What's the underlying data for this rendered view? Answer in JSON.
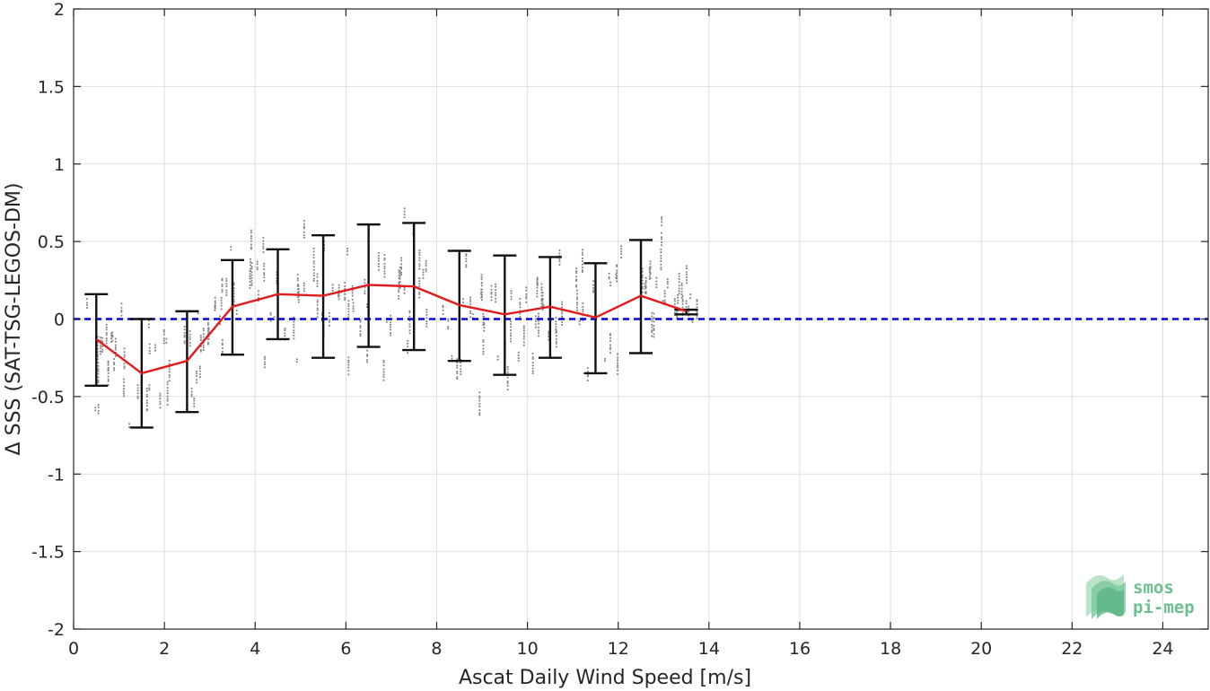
{
  "chart_data": {
    "type": "scatter",
    "xlabel": "Ascat Daily Wind Speed [m/s]",
    "ylabel": "Δ SSS (SAT-TSG-LEGOS-DM)",
    "xlim": [
      0,
      25
    ],
    "ylim": [
      -2,
      2
    ],
    "x_ticks": [
      0,
      2,
      4,
      6,
      8,
      10,
      12,
      14,
      16,
      18,
      20,
      22,
      24
    ],
    "x_tick_labels": [
      "0",
      "2",
      "4",
      "6",
      "8",
      "10",
      "12",
      "14",
      "16",
      "18",
      "20",
      "22",
      "24"
    ],
    "y_ticks": [
      2,
      1.5,
      1,
      0.5,
      0,
      -0.5,
      -1,
      -1.5,
      -2
    ],
    "y_tick_labels": [
      "2",
      "1.5",
      "1",
      "0.5",
      "0",
      "-0.5",
      "-1",
      "-1.5",
      "-2"
    ],
    "grid": true,
    "zero_line": {
      "y": 0,
      "style": "dashed",
      "color": "#0000dd"
    },
    "series": [
      {
        "kind": "binned-mean",
        "color": "#e31a1c",
        "x": [
          0.5,
          1.5,
          2.5,
          3.5,
          4.5,
          5.5,
          6.5,
          7.5,
          8.5,
          9.5,
          10.5,
          11.5,
          12.5,
          13.5
        ],
        "mean": [
          -0.13,
          -0.35,
          -0.27,
          0.08,
          0.16,
          0.15,
          0.22,
          0.21,
          0.09,
          0.03,
          0.08,
          0.01,
          0.15,
          0.05
        ],
        "lower": [
          -0.43,
          -0.7,
          -0.6,
          -0.23,
          -0.13,
          -0.25,
          -0.18,
          -0.2,
          -0.27,
          -0.36,
          -0.25,
          -0.35,
          -0.22,
          0.03
        ],
        "upper": [
          0.16,
          0.0,
          0.05,
          0.38,
          0.45,
          0.54,
          0.61,
          0.62,
          0.44,
          0.41,
          0.4,
          0.36,
          0.51,
          0.06
        ]
      },
      {
        "kind": "raw-points",
        "color": "#7f7f7f",
        "note_count_approx": 1500,
        "clusters": [
          {
            "x": [
              0.2,
              1.0
            ],
            "y_mean": -0.2,
            "y_spread": 0.25
          },
          {
            "x": [
              1.0,
              2.0
            ],
            "y_mean": -0.35,
            "y_spread": 0.3
          },
          {
            "x": [
              2.0,
              3.0
            ],
            "y_mean": -0.25,
            "y_spread": 0.3
          },
          {
            "x": [
              3.0,
              4.0
            ],
            "y_mean": 0.1,
            "y_spread": 0.3
          },
          {
            "x": [
              4.0,
              5.0
            ],
            "y_mean": 0.15,
            "y_spread": 0.3
          },
          {
            "x": [
              5.0,
              6.0
            ],
            "y_mean": 0.15,
            "y_spread": 0.35
          },
          {
            "x": [
              6.0,
              7.0
            ],
            "y_mean": 0.2,
            "y_spread": 0.38
          },
          {
            "x": [
              7.0,
              8.0
            ],
            "y_mean": 0.2,
            "y_spread": 0.38
          },
          {
            "x": [
              8.0,
              9.0
            ],
            "y_mean": 0.08,
            "y_spread": 0.33
          },
          {
            "x": [
              9.0,
              10.0
            ],
            "y_mean": 0.03,
            "y_spread": 0.36
          },
          {
            "x": [
              10.0,
              11.0
            ],
            "y_mean": 0.07,
            "y_spread": 0.32
          },
          {
            "x": [
              11.0,
              12.0
            ],
            "y_mean": 0.0,
            "y_spread": 0.35
          },
          {
            "x": [
              12.0,
              13.0
            ],
            "y_mean": 0.15,
            "y_spread": 0.35
          },
          {
            "x": [
              13.0,
              13.8
            ],
            "y_mean": 0.1,
            "y_spread": 0.15
          }
        ]
      }
    ]
  },
  "logo": {
    "line1": "smos",
    "line2": "pi-mep"
  },
  "colors": {
    "axis": "#262626",
    "grid": "#dfdfdf",
    "background": "#ffffff"
  }
}
